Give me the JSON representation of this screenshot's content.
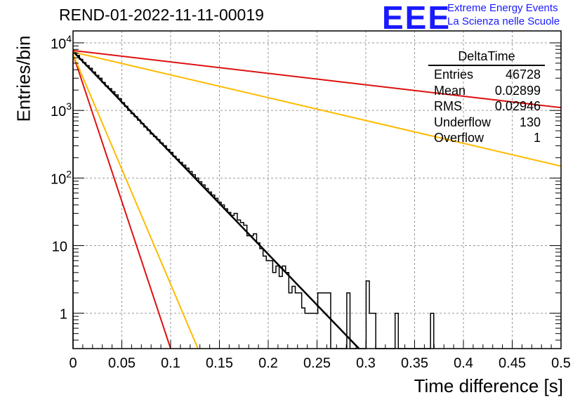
{
  "title": "REND-01-2022-11-11-00019",
  "logo": {
    "mark": "EEE",
    "line1": "Extreme Energy Events",
    "line2": "La Scienza nelle Scuole",
    "color": "#1a1aff"
  },
  "stats": {
    "name": "DeltaTime",
    "rows": [
      {
        "label": "Entries",
        "value": "46728"
      },
      {
        "label": "Mean",
        "value": "0.02899"
      },
      {
        "label": "RMS",
        "value": "0.02946"
      },
      {
        "label": "Underflow",
        "value": "130"
      },
      {
        "label": "Overflow",
        "value": "1"
      }
    ]
  },
  "chart_data": {
    "type": "histogram",
    "xlabel": "Time difference [s]",
    "ylabel": "Entries/bin",
    "xlim": [
      0,
      0.5
    ],
    "ylim": [
      0.3,
      15000
    ],
    "yscale": "log",
    "grid": true,
    "xticks": [
      "0",
      "0.05",
      "0.1",
      "0.15",
      "0.2",
      "0.25",
      "0.3",
      "0.35",
      "0.4",
      "0.45",
      "0.5"
    ],
    "yticks": [
      {
        "value": 1,
        "base": "1",
        "exp": ""
      },
      {
        "value": 10,
        "base": "10",
        "exp": ""
      },
      {
        "value": 100,
        "base": "10",
        "exp": "2"
      },
      {
        "value": 1000,
        "base": "10",
        "exp": "3"
      },
      {
        "value": 10000,
        "base": "10",
        "exp": "4"
      }
    ],
    "histogram": {
      "bin_width": 0.0033,
      "counts": [
        7100,
        6500,
        5700,
        5100,
        4600,
        4200,
        3700,
        3300,
        3000,
        2600,
        2300,
        2100,
        1900,
        1700,
        1500,
        1300,
        1150,
        1000,
        900,
        810,
        720,
        640,
        570,
        510,
        450,
        410,
        370,
        330,
        300,
        265,
        240,
        210,
        190,
        170,
        155,
        140,
        125,
        112,
        100,
        88,
        79,
        70,
        62,
        56,
        50,
        44,
        40,
        35,
        31,
        28,
        30,
        24,
        22,
        20,
        14,
        14,
        15,
        11,
        9,
        7,
        6,
        6,
        4,
        5,
        3.5,
        5,
        4,
        2,
        2.5,
        2,
        2,
        1.2,
        1,
        1,
        1,
        1,
        2,
        2,
        2,
        2,
        0.2,
        0.2,
        0.2,
        0.2,
        0.2,
        2,
        0.2,
        0.2,
        0.2,
        0.2,
        0.2,
        3,
        1,
        1,
        0.2,
        0.2,
        0.2,
        0.2,
        0.2,
        0.2,
        1,
        0.2,
        0.2,
        0.2,
        0.2,
        0.2,
        0.2,
        0.2,
        0.2,
        0.2,
        0.2,
        1
      ]
    },
    "curves": [
      {
        "color": "#000000",
        "x": [
          0,
          0.293
        ],
        "y": [
          7500,
          0.3
        ],
        "width": 2.5
      },
      {
        "color": "#dd1111",
        "x": [
          0,
          0.1
        ],
        "y": [
          6800,
          0.3
        ],
        "width": 2
      },
      {
        "color": "#ffbb00",
        "x": [
          0,
          0.128
        ],
        "y": [
          6800,
          0.3
        ],
        "width": 2
      },
      {
        "color": "#dd1111",
        "x": [
          0,
          0.5
        ],
        "y": [
          7700,
          1100
        ],
        "width": 2
      },
      {
        "color": "#ffbb00",
        "x": [
          0,
          0.5
        ],
        "y": [
          7300,
          150
        ],
        "width": 2
      }
    ]
  }
}
